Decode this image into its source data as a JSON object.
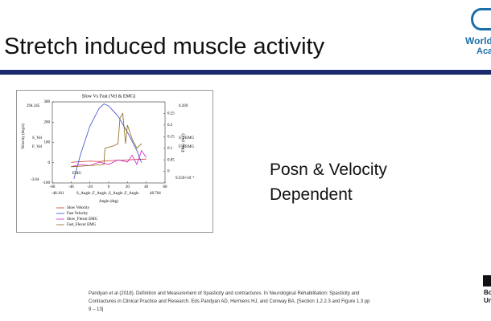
{
  "slide": {
    "title": "Stretch induced muscle activity",
    "logo_top": [
      "World",
      "Acad"
    ],
    "bullet": [
      "Posn & Velocity",
      "Dependent"
    ],
    "citation": [
      "Pandyan et al (2018). Definition and Measurement of Spasticity and contractures. In Neurological Rehabilitation: Spasticity and",
      "Contractures in Clinical Practice and Research. Eds Pandyan AD, Hermens HJ, and Conway BA. [Section 1.2.2.3 and Figure 1.3 pp",
      "9 – 13]"
    ],
    "logo_bottom": [
      "Bo",
      "Un"
    ]
  },
  "chart_data": {
    "type": "line",
    "title": "Slow Vs Fast (Vel & EMG)",
    "x_label": "Angle (deg)",
    "y_label": "Velocity (deg/s)",
    "y2_label": "EMG (mV)",
    "xlim": [
      -60,
      60
    ],
    "xticks": [
      -60,
      -40,
      -20,
      0,
      20,
      40,
      60
    ],
    "ylim": [
      -100,
      300
    ],
    "yticks": [
      -100,
      0,
      100,
      200,
      300
    ],
    "y2lim": [
      -0.05,
      0.3
    ],
    "y2ticks": [
      0,
      0.05,
      0.1,
      0.15,
      0.2,
      0.25
    ],
    "annotations": [
      "294.345",
      "0.269",
      "S_Vel",
      "F_Vel",
      "S_FEMG",
      "F_FEMG",
      "-3.04",
      "9.559×10⁻³",
      "-48.161",
      "S_Angle ,F_Angle ,S_Angle ,F_Angle",
      "48.704",
      "EMG"
    ],
    "series": [
      {
        "name": "Slow Velocity",
        "color": "#d03030",
        "x": [
          -40,
          -30,
          -20,
          -10,
          0,
          10,
          20,
          30,
          40
        ],
        "values": [
          2,
          5,
          8,
          6,
          10,
          12,
          14,
          16,
          18
        ]
      },
      {
        "name": "Fast Velocity",
        "color": "#3a4ad0",
        "x": [
          -37,
          -30,
          -20,
          -10,
          -5,
          0,
          10,
          20,
          30,
          35
        ],
        "values": [
          -80,
          40,
          180,
          270,
          290,
          280,
          230,
          150,
          60,
          0
        ]
      },
      {
        "name": "Slow_Flexor EMG",
        "color": "#d020c8",
        "axis": "y2",
        "x": [
          -40,
          -30,
          -20,
          -10,
          0,
          10,
          20,
          25,
          30,
          35,
          40
        ],
        "values": [
          0.02,
          0.03,
          0.025,
          0.04,
          0.03,
          0.05,
          0.04,
          0.07,
          0.03,
          0.09,
          0.06
        ]
      },
      {
        "name": "Fast_Flexor EMG",
        "color": "#8b6914",
        "axis": "y2",
        "x": [
          -40,
          -20,
          -5,
          -4,
          5,
          10,
          12,
          15,
          18,
          20,
          25,
          30,
          35
        ],
        "values": [
          0.02,
          0.025,
          0.03,
          0.1,
          0.11,
          0.12,
          0.23,
          0.25,
          0.12,
          0.2,
          0.14,
          0.1,
          0.12
        ]
      }
    ]
  }
}
